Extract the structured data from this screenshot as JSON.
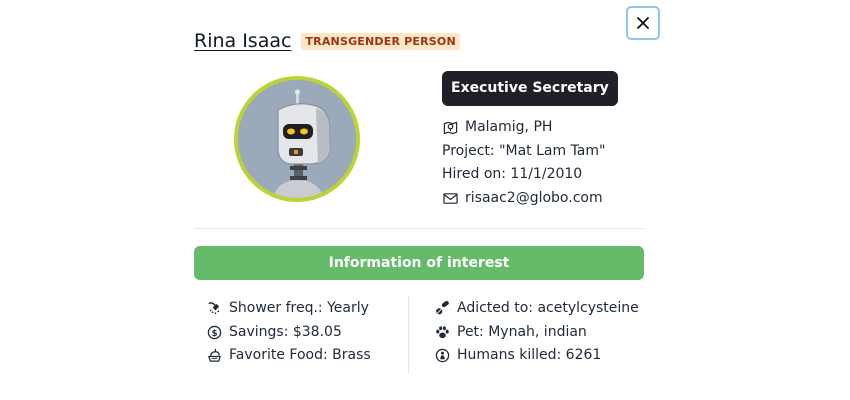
{
  "person": {
    "name": "Rina Isaac",
    "badge": "TRANSGENDER PERSON",
    "role": "Executive Secretary"
  },
  "details": {
    "location": "Malamig, PH",
    "project": "Project: \"Mat Lam Tam\"",
    "hired": "Hired on: 11/1/2010",
    "email": "risaac2@globo.com"
  },
  "interest": {
    "header": "Information of interest",
    "left": [
      {
        "icon": "shower-icon",
        "text": "Shower freq.: Yearly"
      },
      {
        "icon": "dollar-coin-icon",
        "text": "Savings: $38.05"
      },
      {
        "icon": "food-icon",
        "text": "Favorite Food: Brass"
      }
    ],
    "right": [
      {
        "icon": "pills-icon",
        "text": "Adicted to: acetylcysteine"
      },
      {
        "icon": "paw-icon",
        "text": "Pet: Mynah, indian"
      },
      {
        "icon": "person-icon",
        "text": "Humans killed: 6261"
      }
    ]
  },
  "icons": {
    "location": "map-pin-icon",
    "email": "envelope-icon",
    "close": "close-icon",
    "avatar": "robot-avatar"
  },
  "colors": {
    "badge_bg": "#fde7c7",
    "badge_text": "#9a3412",
    "role_bg": "#1f2028",
    "avatar_border": "#bbd333",
    "interest_bg": "#66bb6a",
    "close_border": "#93c5e8"
  }
}
